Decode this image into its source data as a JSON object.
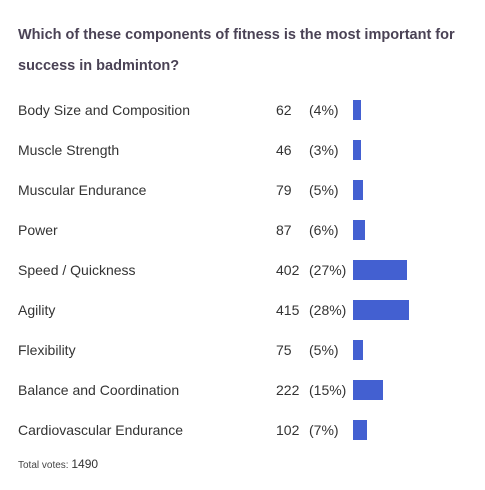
{
  "poll": {
    "question": "Which of these components of fitness is the most important for success in badminton?",
    "bar_color": "#4360d1",
    "options": [
      {
        "label": "Body Size and Composition",
        "votes": "62",
        "percent_text": "(4%)",
        "fraction": 0.04
      },
      {
        "label": "Muscle Strength",
        "votes": "46",
        "percent_text": "(3%)",
        "fraction": 0.03
      },
      {
        "label": "Muscular Endurance",
        "votes": "79",
        "percent_text": "(5%)",
        "fraction": 0.05
      },
      {
        "label": "Power",
        "votes": "87",
        "percent_text": "(6%)",
        "fraction": 0.06
      },
      {
        "label": "Speed / Quickness",
        "votes": "402",
        "percent_text": "(27%)",
        "fraction": 0.27
      },
      {
        "label": "Agility",
        "votes": "415",
        "percent_text": "(28%)",
        "fraction": 0.28
      },
      {
        "label": "Flexibility",
        "votes": "75",
        "percent_text": "(5%)",
        "fraction": 0.05
      },
      {
        "label": "Balance and Coordination",
        "votes": "222",
        "percent_text": "(15%)",
        "fraction": 0.15
      },
      {
        "label": "Cardiovascular Endurance",
        "votes": "102",
        "percent_text": "(7%)",
        "fraction": 0.07
      }
    ],
    "total_label": "Total votes:",
    "total_votes": "1490"
  }
}
